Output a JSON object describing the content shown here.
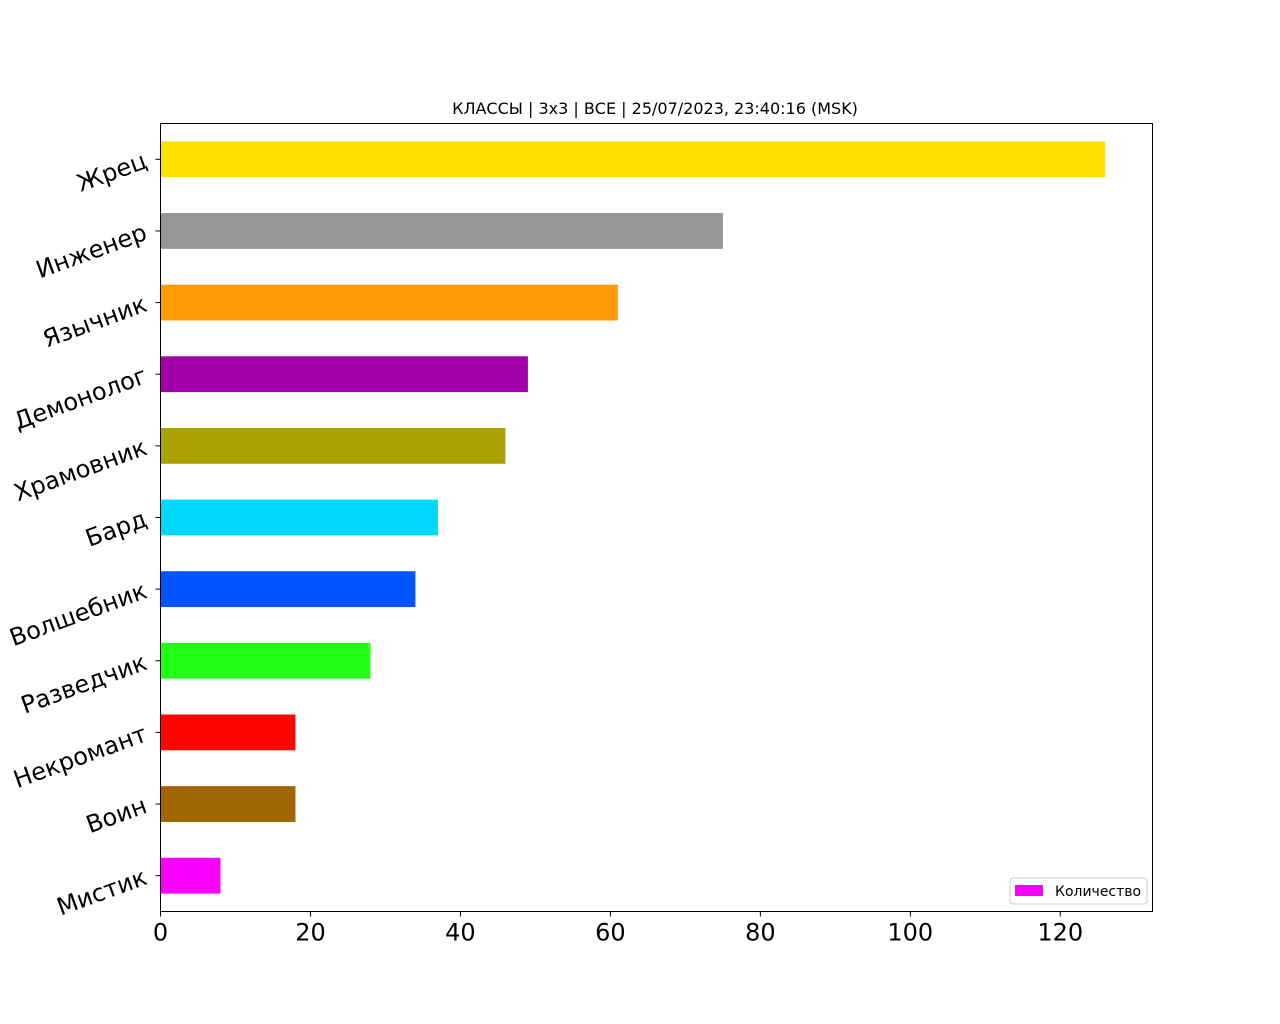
{
  "chart_data": {
    "type": "bar",
    "orientation": "horizontal",
    "title": "КЛАССЫ | 3x3 | ВСЕ | 25/07/2023, 23:40:16 (MSK)",
    "xlabel": "",
    "ylabel": "",
    "categories": [
      "Жрец",
      "Инженер",
      "Язычник",
      "Демонолог",
      "Храмовник",
      "Бард",
      "Волшебник",
      "Разведчик",
      "Некромант",
      "Воин",
      "Мистик"
    ],
    "values": [
      126,
      75,
      61,
      49,
      46,
      37,
      34,
      28,
      18,
      18,
      8
    ],
    "colors": [
      "#ffe000",
      "#969696",
      "#ff9c05",
      "#a100a9",
      "#aaa000",
      "#00d9fc",
      "#0055ff",
      "#22ff14",
      "#ff0500",
      "#a16600",
      "#fa00fe"
    ],
    "xlim": [
      0,
      132.3
    ],
    "xticks": [
      0,
      20,
      40,
      60,
      80,
      100,
      120
    ],
    "xtick_labels": [
      "0",
      "20",
      "40",
      "60",
      "80",
      "100",
      "120"
    ],
    "grid": false,
    "legend": {
      "position": "bottom-right",
      "entries": [
        {
          "label": "Количество",
          "color": "#fa00fe"
        }
      ]
    }
  }
}
